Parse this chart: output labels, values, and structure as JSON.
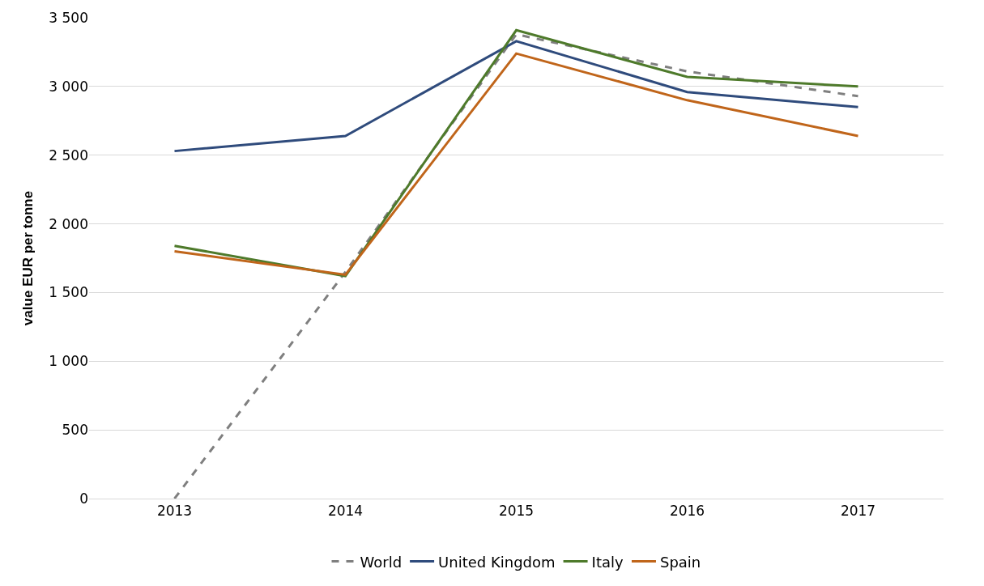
{
  "chart_data": {
    "type": "line",
    "ylabel": "value EUR per tonne",
    "categories": [
      "2013",
      "2014",
      "2015",
      "2016",
      "2017"
    ],
    "series": [
      {
        "name": "World",
        "color": "#7f7f7f",
        "line_style": "dashed",
        "values": [
          0,
          1650,
          3380,
          3110,
          2930
        ]
      },
      {
        "name": "United Kingdom",
        "color": "#2f4b7c",
        "values": [
          2530,
          2640,
          3330,
          2960,
          2850
        ]
      },
      {
        "name": "Italy",
        "color": "#4e7a2b",
        "values": [
          1840,
          1620,
          3410,
          3070,
          3000
        ]
      },
      {
        "name": "Spain",
        "color": "#c0651a",
        "values": [
          1800,
          1630,
          3240,
          2900,
          2640
        ]
      }
    ],
    "ylim": [
      0,
      3500
    ],
    "yticks": [
      0,
      500,
      {
        "value": 1000,
        "label": "1 000"
      },
      {
        "value": 1500,
        "label": "1 500"
      },
      {
        "value": 2000,
        "label": "2 000"
      },
      {
        "value": 2500,
        "label": "2 500"
      },
      {
        "value": 3000,
        "label": "3 000"
      },
      {
        "value": 3500,
        "label": "3 500"
      }
    ],
    "grid": "y",
    "legend": "bottom",
    "marker": "none",
    "line_style": "solid"
  }
}
